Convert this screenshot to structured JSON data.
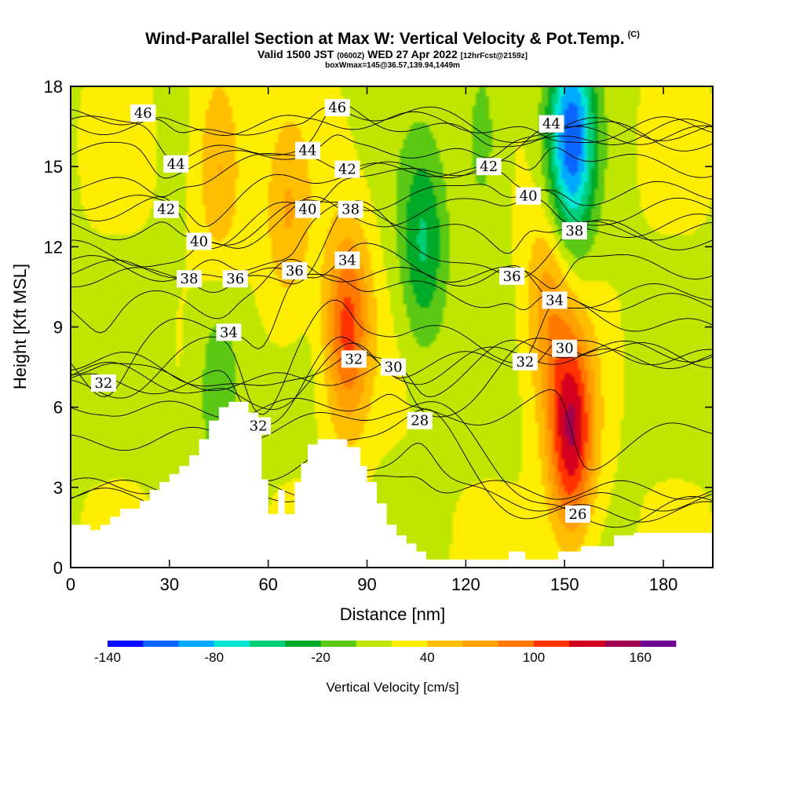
{
  "title": {
    "main": "Wind-Parallel Section at Max W: Vertical Velocity & Pot.Temp.",
    "copyright": "(C)",
    "valid_prefix": "Valid 1500 JST",
    "valid_utc": "(0600Z)",
    "valid_date": "WED 27 Apr 2022",
    "forecast": "[12hrFcst@2159z]",
    "box": "boxWmax=145@36.57,139.94,1449m"
  },
  "chart_data": {
    "type": "heatmap",
    "xlabel": "Distance [nm]",
    "ylabel": "Height [Kft MSL]",
    "xlim": [
      0,
      195
    ],
    "ylim": [
      0,
      18
    ],
    "xticks": [
      0,
      30,
      60,
      90,
      120,
      150,
      180
    ],
    "yticks": [
      0,
      3,
      6,
      9,
      12,
      15,
      18
    ],
    "colorbar": {
      "label": "Vertical Velocity [cm/s]",
      "ticks": [
        -140,
        -80,
        -20,
        40,
        100,
        160
      ],
      "range": [
        -140,
        180
      ],
      "step": 20,
      "colors": [
        "#0a0aff",
        "#0a64ff",
        "#00aaff",
        "#00e6d2",
        "#00cd78",
        "#00aa28",
        "#5ac814",
        "#bee600",
        "#ffee00",
        "#ffbe00",
        "#ffa000",
        "#ff7800",
        "#ff3200",
        "#d2001e",
        "#a00050",
        "#6e0096"
      ]
    },
    "isentropes_labels": [
      {
        "value": "46",
        "x": 22,
        "y": 17.0
      },
      {
        "value": "44",
        "x": 32,
        "y": 15.1
      },
      {
        "value": "42",
        "x": 29,
        "y": 13.4
      },
      {
        "value": "40",
        "x": 39,
        "y": 12.2
      },
      {
        "value": "38",
        "x": 36,
        "y": 10.8
      },
      {
        "value": "36",
        "x": 50,
        "y": 10.8
      },
      {
        "value": "34",
        "x": 48,
        "y": 8.8
      },
      {
        "value": "32",
        "x": 10,
        "y": 6.9
      },
      {
        "value": "46",
        "x": 81,
        "y": 17.2
      },
      {
        "value": "44",
        "x": 72,
        "y": 15.6
      },
      {
        "value": "42",
        "x": 84,
        "y": 14.9
      },
      {
        "value": "40",
        "x": 72,
        "y": 13.4
      },
      {
        "value": "38",
        "x": 85,
        "y": 13.4
      },
      {
        "value": "36",
        "x": 68,
        "y": 11.1
      },
      {
        "value": "34",
        "x": 84,
        "y": 11.5
      },
      {
        "value": "32",
        "x": 86,
        "y": 7.8
      },
      {
        "value": "32",
        "x": 57,
        "y": 5.3
      },
      {
        "value": "30",
        "x": 98,
        "y": 7.5
      },
      {
        "value": "28",
        "x": 106,
        "y": 5.5
      },
      {
        "value": "44",
        "x": 146,
        "y": 16.6
      },
      {
        "value": "42",
        "x": 127,
        "y": 15.0
      },
      {
        "value": "40",
        "x": 139,
        "y": 13.9
      },
      {
        "value": "38",
        "x": 153,
        "y": 12.6
      },
      {
        "value": "36",
        "x": 134,
        "y": 10.9
      },
      {
        "value": "34",
        "x": 147,
        "y": 10.0
      },
      {
        "value": "32",
        "x": 138,
        "y": 7.7
      },
      {
        "value": "30",
        "x": 150,
        "y": 8.2
      },
      {
        "value": "26",
        "x": 154,
        "y": 2.0
      }
    ],
    "terrain_profile": [
      [
        0,
        1.6
      ],
      [
        6,
        1.6
      ],
      [
        6,
        1.4
      ],
      [
        9,
        1.4
      ],
      [
        9,
        1.6
      ],
      [
        12,
        1.6
      ],
      [
        12,
        1.9
      ],
      [
        15,
        1.9
      ],
      [
        15,
        2.2
      ],
      [
        21,
        2.2
      ],
      [
        21,
        2.5
      ],
      [
        24,
        2.5
      ],
      [
        24,
        2.9
      ],
      [
        27,
        2.9
      ],
      [
        27,
        3.2
      ],
      [
        30,
        3.2
      ],
      [
        30,
        3.5
      ],
      [
        33,
        3.5
      ],
      [
        33,
        3.8
      ],
      [
        36,
        3.8
      ],
      [
        36,
        4.2
      ],
      [
        39,
        4.2
      ],
      [
        39,
        4.8
      ],
      [
        42,
        4.8
      ],
      [
        42,
        5.5
      ],
      [
        45,
        5.5
      ],
      [
        45,
        6.0
      ],
      [
        48,
        6.0
      ],
      [
        48,
        6.2
      ],
      [
        54,
        6.2
      ],
      [
        54,
        5.8
      ],
      [
        57,
        5.8
      ],
      [
        57,
        5.4
      ],
      [
        58,
        5.4
      ],
      [
        58,
        3.3
      ],
      [
        60,
        3.3
      ],
      [
        60,
        2.0
      ],
      [
        63,
        2.0
      ],
      [
        63,
        2.9
      ],
      [
        65,
        2.9
      ],
      [
        65,
        2.0
      ],
      [
        68,
        2.0
      ],
      [
        68,
        3.2
      ],
      [
        70,
        3.2
      ],
      [
        70,
        3.9
      ],
      [
        72,
        3.9
      ],
      [
        72,
        4.6
      ],
      [
        75,
        4.6
      ],
      [
        75,
        4.8
      ],
      [
        84,
        4.8
      ],
      [
        84,
        4.5
      ],
      [
        88,
        4.5
      ],
      [
        88,
        3.8
      ],
      [
        90,
        3.8
      ],
      [
        90,
        3.2
      ],
      [
        93,
        3.2
      ],
      [
        93,
        2.4
      ],
      [
        96,
        2.4
      ],
      [
        96,
        1.6
      ],
      [
        99,
        1.6
      ],
      [
        99,
        1.2
      ],
      [
        102,
        1.2
      ],
      [
        102,
        0.9
      ],
      [
        105,
        0.9
      ],
      [
        105,
        0.6
      ],
      [
        108,
        0.6
      ],
      [
        108,
        0.3
      ],
      [
        133,
        0.3
      ],
      [
        133,
        0.6
      ],
      [
        138,
        0.6
      ],
      [
        138,
        0.3
      ],
      [
        148,
        0.3
      ],
      [
        148,
        0.6
      ],
      [
        155,
        0.6
      ],
      [
        155,
        0.8
      ],
      [
        165,
        0.8
      ],
      [
        165,
        1.2
      ],
      [
        171,
        1.2
      ],
      [
        171,
        1.3
      ],
      [
        195,
        1.3
      ]
    ],
    "velocity_features": [
      {
        "x": 107,
        "y": 12.0,
        "value": -60
      },
      {
        "x": 152,
        "y": 16.0,
        "value": -130
      },
      {
        "x": 152,
        "y": 5.0,
        "value": 120
      },
      {
        "x": 84,
        "y": 9.0,
        "value": 90
      },
      {
        "x": 66,
        "y": 13.0,
        "value": 40
      },
      {
        "x": 45,
        "y": 15.0,
        "value": 50
      },
      {
        "x": 145,
        "y": 10.0,
        "value": 50
      },
      {
        "x": 125,
        "y": 16.0,
        "value": -30
      },
      {
        "x": 45,
        "y": 7.0,
        "value": -40
      }
    ]
  }
}
